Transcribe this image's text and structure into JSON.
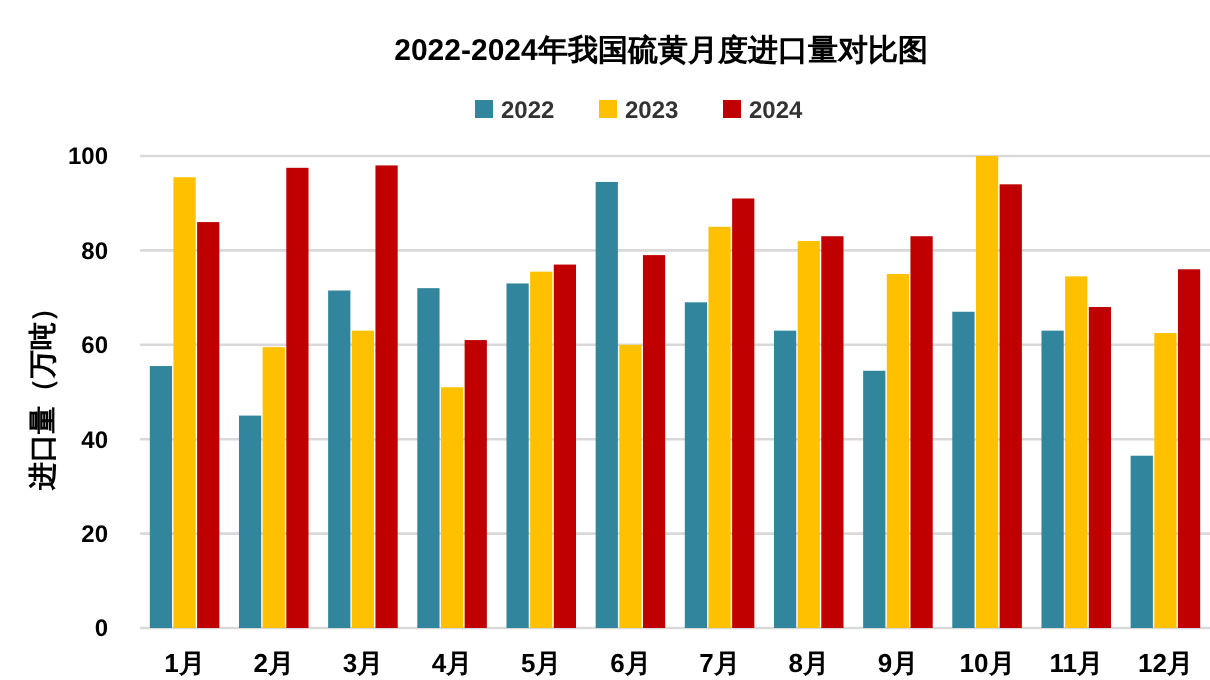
{
  "chart_data": {
    "type": "bar",
    "title": "2022-2024年我国硫黄月度进口量对比图",
    "ylabel": "进口量（万吨）",
    "categories": [
      "1月",
      "2月",
      "3月",
      "4月",
      "5月",
      "6月",
      "7月",
      "8月",
      "9月",
      "10月",
      "11月",
      "12月"
    ],
    "series": [
      {
        "name": "2022",
        "color": "#31859c",
        "values": [
          55.5,
          45,
          71.5,
          72,
          73,
          94.5,
          69,
          63,
          54.5,
          67,
          63,
          36.5
        ]
      },
      {
        "name": "2023",
        "color": "#ffc000",
        "values": [
          95.5,
          59.5,
          63,
          51,
          75.5,
          60,
          85,
          82,
          75,
          100,
          74.5,
          62.5
        ]
      },
      {
        "name": "2024",
        "color": "#c00000",
        "values": [
          86,
          97.5,
          98,
          61,
          77,
          79,
          91,
          83,
          83,
          94,
          68,
          76
        ]
      }
    ],
    "ylim": [
      0,
      100
    ],
    "yticks": [
      0,
      20,
      40,
      60,
      80,
      100
    ],
    "grid": "y",
    "legend": "top"
  }
}
